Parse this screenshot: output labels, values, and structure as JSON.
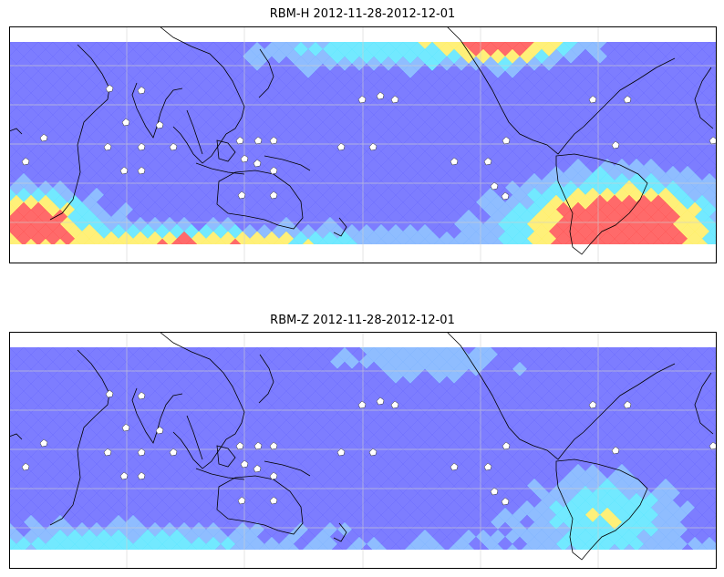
{
  "maps": [
    {
      "title": "RBM-H 2012-11-28-2012-12-01",
      "variant": "h"
    },
    {
      "title": "RBM-Z 2012-11-28-2012-12-01",
      "variant": "z"
    }
  ],
  "colormap": {
    "low": "#6b6bff",
    "mid_low": "#7fb4ff",
    "mid": "#5ee6ff",
    "mid_high": "#ffee66",
    "high": "#ff5555"
  },
  "gridlines": "on"
}
